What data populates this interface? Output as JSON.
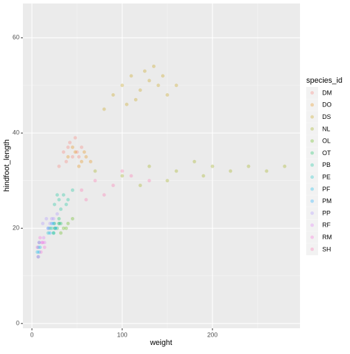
{
  "chart_data": {
    "type": "scatter",
    "x_label": "weight",
    "y_label": "hindfoot_length",
    "legend_title": "species_id",
    "xlim": [
      -10,
      297
    ],
    "ylim": [
      -1,
      67.2
    ],
    "xticks": [
      0,
      100,
      200
    ],
    "yticks": [
      0,
      20,
      40,
      60
    ],
    "xminor": [
      50,
      150,
      250
    ],
    "yminor": [
      10,
      30,
      50
    ],
    "grid": true,
    "legend": "right",
    "series": [
      {
        "name": "DM",
        "color": "#F8766D",
        "x": [
          35,
          40,
          45,
          50,
          42,
          38,
          55,
          48,
          30,
          52
        ],
        "y": [
          36,
          37,
          35,
          36,
          38,
          34,
          37,
          39,
          33,
          35
        ]
      },
      {
        "name": "DO",
        "color": "#E38900",
        "x": [
          40,
          48,
          55,
          60,
          45,
          52,
          58,
          65
        ],
        "y": [
          35,
          36,
          34,
          35,
          37,
          33,
          36,
          34
        ]
      },
      {
        "name": "DS",
        "color": "#C49A00",
        "x": [
          90,
          100,
          110,
          120,
          130,
          140,
          150,
          125,
          115,
          135,
          160,
          105,
          145,
          80
        ],
        "y": [
          48,
          50,
          52,
          49,
          51,
          50,
          48,
          53,
          47,
          54,
          50,
          46,
          52,
          45
        ]
      },
      {
        "name": "NL",
        "color": "#99A800",
        "x": [
          70,
          100,
          130,
          160,
          180,
          200,
          220,
          150,
          190,
          240,
          260,
          120,
          280
        ],
        "y": [
          32,
          31,
          33,
          32,
          34,
          33,
          32,
          30,
          31,
          33,
          32,
          29,
          33
        ]
      },
      {
        "name": "OL",
        "color": "#53B400",
        "x": [
          25,
          30,
          35,
          40,
          45,
          32,
          38
        ],
        "y": [
          20,
          21,
          20,
          21,
          22,
          19,
          20
        ]
      },
      {
        "name": "OT",
        "color": "#00BC56",
        "x": [
          20,
          25,
          28,
          32,
          24,
          30
        ],
        "y": [
          20,
          21,
          20,
          21,
          19,
          22
        ]
      },
      {
        "name": "PB",
        "color": "#00C094",
        "x": [
          25,
          30,
          35,
          40,
          45,
          32,
          38,
          28
        ],
        "y": [
          25,
          26,
          27,
          26,
          28,
          24,
          25,
          27
        ]
      },
      {
        "name": "PE",
        "color": "#00BFC4",
        "x": [
          18,
          22,
          26,
          30,
          24
        ],
        "y": [
          19,
          20,
          20,
          21,
          19
        ]
      },
      {
        "name": "PF",
        "color": "#00B6EB",
        "x": [
          6,
          7,
          8,
          9,
          7,
          8
        ],
        "y": [
          15,
          16,
          15,
          16,
          14,
          17
        ]
      },
      {
        "name": "PM",
        "color": "#06A4FF",
        "x": [
          18,
          22,
          26,
          20,
          24
        ],
        "y": [
          20,
          21,
          20,
          19,
          21
        ]
      },
      {
        "name": "PP",
        "color": "#A58AFF",
        "x": [
          12,
          16,
          20,
          24,
          28,
          18,
          22
        ],
        "y": [
          21,
          22,
          21,
          22,
          23,
          20,
          22
        ]
      },
      {
        "name": "RF",
        "color": "#DF70F8",
        "x": [
          11,
          13,
          14
        ],
        "y": [
          17,
          18,
          17
        ]
      },
      {
        "name": "RM",
        "color": "#FB61D7",
        "x": [
          6,
          8,
          10,
          12,
          9,
          14,
          7
        ],
        "y": [
          16,
          17,
          15,
          17,
          18,
          16,
          14
        ]
      },
      {
        "name": "SH",
        "color": "#FF66A8",
        "x": [
          55,
          70,
          90,
          110,
          80,
          130,
          60,
          100
        ],
        "y": [
          28,
          30,
          29,
          31,
          27,
          30,
          26,
          32
        ]
      }
    ]
  }
}
